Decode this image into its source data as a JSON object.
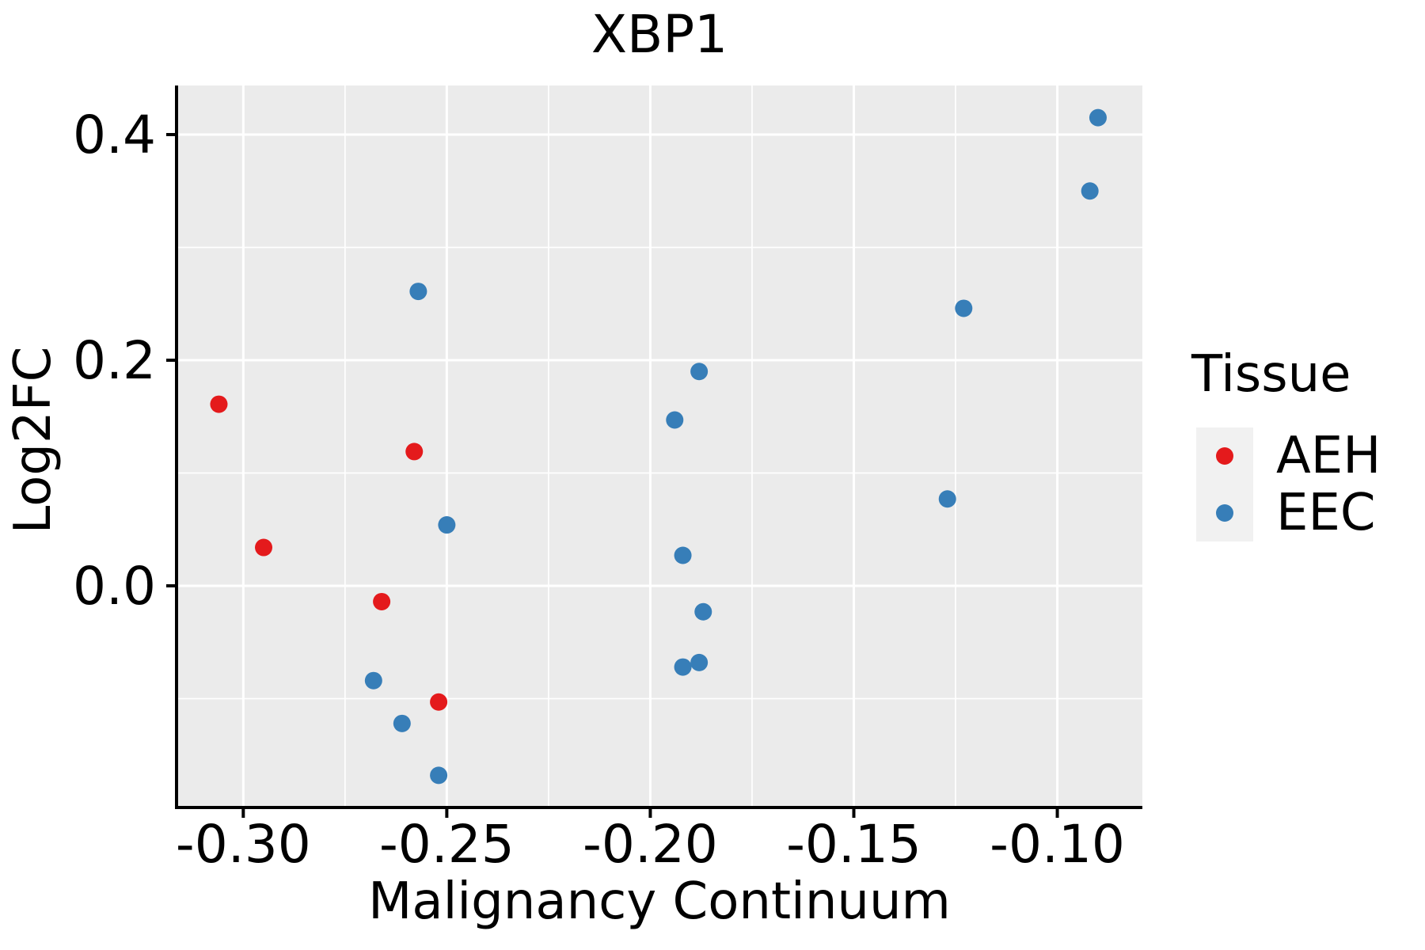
{
  "title": "XBP1",
  "legend": {
    "title": "Tissue",
    "entries": [
      {
        "label": "AEH",
        "color": "#E41A1C"
      },
      {
        "label": "EEC",
        "color": "#377EB8"
      }
    ]
  },
  "chart_data": {
    "type": "scatter",
    "title": "XBP1",
    "xlabel": "Malignancy Continuum",
    "ylabel": "Log2FC",
    "x_range": [
      -0.3164,
      -0.0791
    ],
    "y_range": [
      -0.1965,
      0.4435
    ],
    "x_ticks": {
      "values": [
        -0.3,
        -0.25,
        -0.2,
        -0.15,
        -0.1
      ],
      "labels": [
        "-0.30",
        "-0.25",
        "-0.20",
        "-0.15",
        "-0.10"
      ],
      "minor": [
        -0.275,
        -0.225,
        -0.175,
        -0.125
      ]
    },
    "y_ticks": {
      "values": [
        0.0,
        0.2,
        0.4
      ],
      "labels": [
        "0.0",
        "0.2",
        "0.4"
      ],
      "minor": [
        -0.1,
        0.1,
        0.3
      ]
    },
    "grid": true,
    "legend_position": "right",
    "panel_bg": "#EBEBEB",
    "grid_color": "#FFFFFF",
    "axis_color": "#000000",
    "point_radius": 11,
    "series": [
      {
        "name": "AEH",
        "color": "#E41A1C",
        "points": [
          [
            -0.306,
            0.161
          ],
          [
            -0.295,
            0.034
          ],
          [
            -0.258,
            0.119
          ],
          [
            -0.266,
            -0.014
          ],
          [
            -0.252,
            -0.103
          ]
        ]
      },
      {
        "name": "EEC",
        "color": "#377EB8",
        "points": [
          [
            -0.257,
            0.261
          ],
          [
            -0.25,
            0.054
          ],
          [
            -0.268,
            -0.084
          ],
          [
            -0.261,
            -0.122
          ],
          [
            -0.252,
            -0.168
          ],
          [
            -0.188,
            0.19
          ],
          [
            -0.194,
            0.147
          ],
          [
            -0.192,
            0.027
          ],
          [
            -0.187,
            -0.023
          ],
          [
            -0.192,
            -0.072
          ],
          [
            -0.188,
            -0.068
          ],
          [
            -0.09,
            0.415
          ],
          [
            -0.092,
            0.35
          ],
          [
            -0.123,
            0.246
          ],
          [
            -0.127,
            0.077
          ]
        ]
      }
    ]
  }
}
